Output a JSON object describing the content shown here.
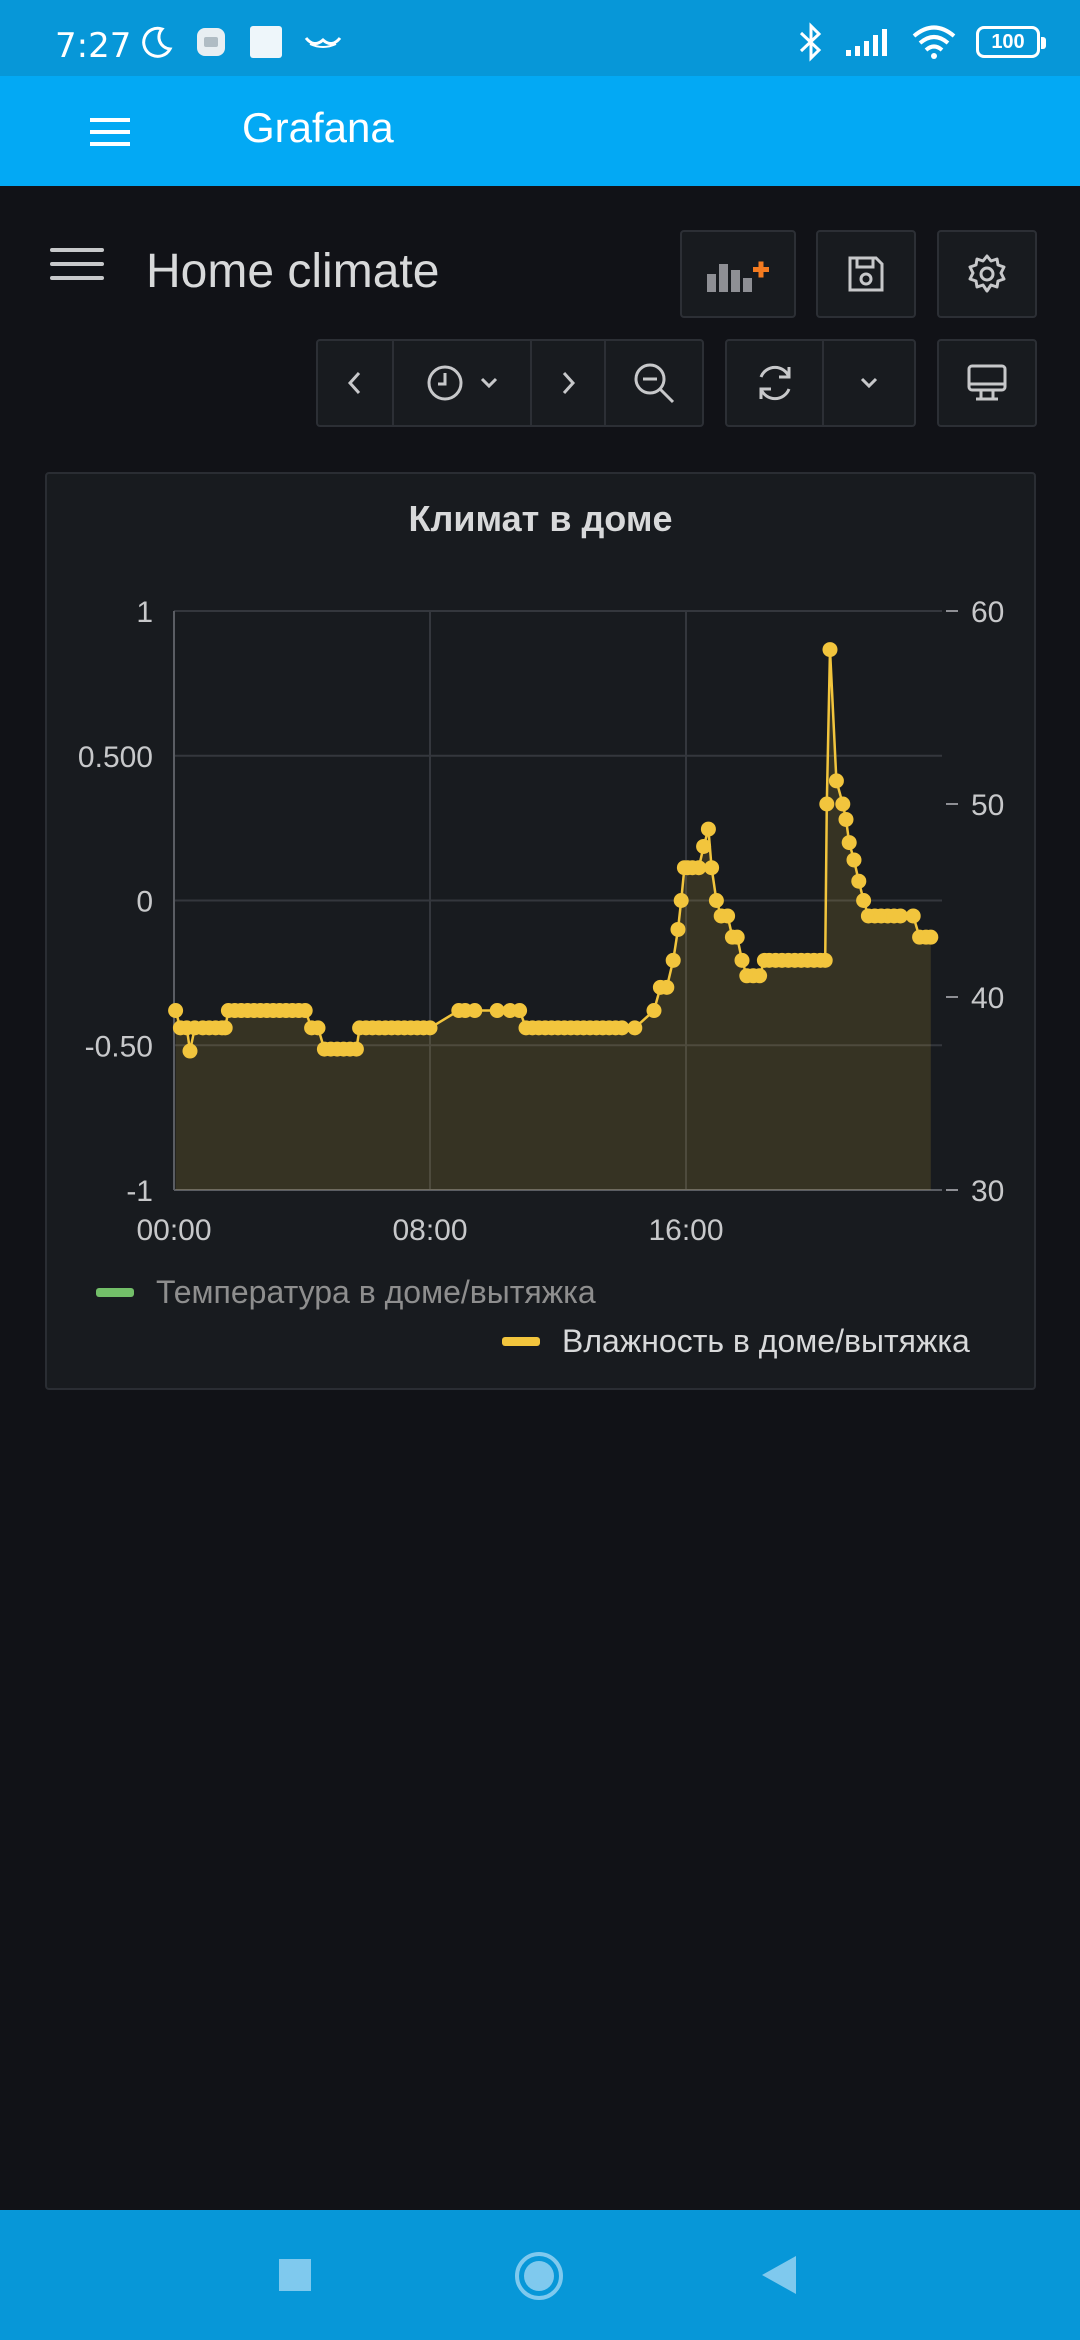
{
  "status_bar": {
    "time": "7:27",
    "battery": "100",
    "icons": [
      "moon-icon",
      "notification-icon",
      "square-notification-icon",
      "mustache-icon",
      "bluetooth-icon",
      "signal-icon",
      "wifi-icon"
    ]
  },
  "app_bar": {
    "title": "Grafana"
  },
  "dashboard": {
    "title": "Home climate",
    "buttons": [
      "add-panel-icon",
      "save-icon",
      "settings-icon",
      "time-back-icon",
      "clock-icon",
      "time-forward-icon",
      "zoom-out-icon",
      "refresh-icon",
      "refresh-interval-icon",
      "tv-mode-icon"
    ]
  },
  "panel": {
    "title": "Климат в доме",
    "legend": [
      {
        "name": "Температура в доме/вытяжка",
        "color": "#73bf69"
      },
      {
        "name": "Влажность в доме/вытяжка",
        "color": "#f2c53d"
      }
    ]
  },
  "chart_data": {
    "type": "line",
    "title": "Климат в доме",
    "x_ticks": [
      "00:00",
      "08:00",
      "16:00"
    ],
    "x_range": [
      0,
      24
    ],
    "y_left_ticks": [
      "1",
      "0.500",
      "0",
      "-0.50",
      "-1"
    ],
    "y_left_range": [
      -1,
      1
    ],
    "y_right_ticks": [
      "60",
      "50",
      "40",
      "30"
    ],
    "y_right_range": [
      30,
      60
    ],
    "grid": true,
    "legend_position": "bottom",
    "series": [
      {
        "name": "Температура в доме/вытяжка",
        "axis": "left",
        "color": "#73bf69",
        "points": []
      },
      {
        "name": "Влажность в доме/вытяжка",
        "axis": "right",
        "color": "#f2c53d",
        "points": [
          [
            0.05,
            39.3
          ],
          [
            0.2,
            38.4
          ],
          [
            0.4,
            38.4
          ],
          [
            0.5,
            37.2
          ],
          [
            0.65,
            38.4
          ],
          [
            0.9,
            38.4
          ],
          [
            1.1,
            38.4
          ],
          [
            1.3,
            38.4
          ],
          [
            1.5,
            38.4
          ],
          [
            1.6,
            38.4
          ],
          [
            1.7,
            39.3
          ],
          [
            1.9,
            39.3
          ],
          [
            2.1,
            39.3
          ],
          [
            2.3,
            39.3
          ],
          [
            2.5,
            39.3
          ],
          [
            2.7,
            39.3
          ],
          [
            2.9,
            39.3
          ],
          [
            3.1,
            39.3
          ],
          [
            3.3,
            39.3
          ],
          [
            3.5,
            39.3
          ],
          [
            3.7,
            39.3
          ],
          [
            3.9,
            39.3
          ],
          [
            4.1,
            39.3
          ],
          [
            4.3,
            38.4
          ],
          [
            4.5,
            38.4
          ],
          [
            4.7,
            37.3
          ],
          [
            4.9,
            37.3
          ],
          [
            5.1,
            37.3
          ],
          [
            5.3,
            37.3
          ],
          [
            5.5,
            37.3
          ],
          [
            5.7,
            37.3
          ],
          [
            5.8,
            38.4
          ],
          [
            6.0,
            38.4
          ],
          [
            6.2,
            38.4
          ],
          [
            6.4,
            38.4
          ],
          [
            6.6,
            38.4
          ],
          [
            6.8,
            38.4
          ],
          [
            7.0,
            38.4
          ],
          [
            7.2,
            38.4
          ],
          [
            7.4,
            38.4
          ],
          [
            7.6,
            38.4
          ],
          [
            7.8,
            38.4
          ],
          [
            8.0,
            38.4
          ],
          [
            8.9,
            39.3
          ],
          [
            9.1,
            39.3
          ],
          [
            9.4,
            39.3
          ],
          [
            10.1,
            39.3
          ],
          [
            10.5,
            39.3
          ],
          [
            10.8,
            39.3
          ],
          [
            11.0,
            38.4
          ],
          [
            11.2,
            38.4
          ],
          [
            11.4,
            38.4
          ],
          [
            11.6,
            38.4
          ],
          [
            11.8,
            38.4
          ],
          [
            12.0,
            38.4
          ],
          [
            12.2,
            38.4
          ],
          [
            12.4,
            38.4
          ],
          [
            12.6,
            38.4
          ],
          [
            12.8,
            38.4
          ],
          [
            13.0,
            38.4
          ],
          [
            13.2,
            38.4
          ],
          [
            13.4,
            38.4
          ],
          [
            13.6,
            38.4
          ],
          [
            13.8,
            38.4
          ],
          [
            14.0,
            38.4
          ],
          [
            14.4,
            38.4
          ],
          [
            15.0,
            39.3
          ],
          [
            15.2,
            40.5
          ],
          [
            15.4,
            40.5
          ],
          [
            15.6,
            41.9
          ],
          [
            15.75,
            43.5
          ],
          [
            15.85,
            45.0
          ],
          [
            15.95,
            46.7
          ],
          [
            16.05,
            46.7
          ],
          [
            16.2,
            46.7
          ],
          [
            16.4,
            46.7
          ],
          [
            16.55,
            47.8
          ],
          [
            16.7,
            48.7
          ],
          [
            16.8,
            46.7
          ],
          [
            16.95,
            45.0
          ],
          [
            17.1,
            44.2
          ],
          [
            17.3,
            44.2
          ],
          [
            17.45,
            43.1
          ],
          [
            17.6,
            43.1
          ],
          [
            17.75,
            41.9
          ],
          [
            17.9,
            41.1
          ],
          [
            18.1,
            41.1
          ],
          [
            18.3,
            41.1
          ],
          [
            18.45,
            41.9
          ],
          [
            18.6,
            41.9
          ],
          [
            18.8,
            41.9
          ],
          [
            19.0,
            41.9
          ],
          [
            19.2,
            41.9
          ],
          [
            19.4,
            41.9
          ],
          [
            19.6,
            41.9
          ],
          [
            19.8,
            41.9
          ],
          [
            20.0,
            41.9
          ],
          [
            20.2,
            41.9
          ],
          [
            20.35,
            41.9
          ],
          [
            20.4,
            50.0
          ],
          [
            20.5,
            58.0
          ],
          [
            20.7,
            51.2
          ],
          [
            20.9,
            50.0
          ],
          [
            21.0,
            49.2
          ],
          [
            21.1,
            48.0
          ],
          [
            21.25,
            47.1
          ],
          [
            21.4,
            46.0
          ],
          [
            21.55,
            45.0
          ],
          [
            21.7,
            44.2
          ],
          [
            21.9,
            44.2
          ],
          [
            22.1,
            44.2
          ],
          [
            22.3,
            44.2
          ],
          [
            22.5,
            44.2
          ],
          [
            22.7,
            44.2
          ],
          [
            23.1,
            44.2
          ],
          [
            23.3,
            43.1
          ],
          [
            23.5,
            43.1
          ],
          [
            23.65,
            43.1
          ]
        ]
      }
    ]
  }
}
